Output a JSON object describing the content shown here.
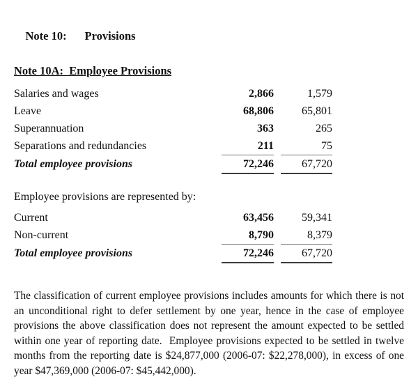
{
  "header": {
    "note_label": "Note 10:",
    "note_title": "Provisions",
    "subtitle": "Note 10A:  Employee Provisions"
  },
  "employee_provisions_table": {
    "rows": [
      {
        "label": "Salaries and wages",
        "col1": "2,866",
        "col2": "1,579"
      },
      {
        "label": "Leave",
        "col1": "68,806",
        "col2": "65,801"
      },
      {
        "label": "Superannuation",
        "col1": "363",
        "col2": "265"
      },
      {
        "label": "Separations and redundancies",
        "col1": "211",
        "col2": "75"
      }
    ],
    "total": {
      "label": "Total employee provisions",
      "col1": "72,246",
      "col2": "67,720"
    }
  },
  "represented_by": {
    "heading": "Employee provisions are represented by:",
    "rows": [
      {
        "label": "Current",
        "col1": "63,456",
        "col2": "59,341"
      },
      {
        "label": "Non-current",
        "col1": "8,790",
        "col2": "8,379"
      }
    ],
    "total": {
      "label": "Total employee provisions",
      "col1": "72,246",
      "col2": "67,720"
    }
  },
  "paragraph": "The classification of current employee provisions includes amounts for which there is not an unconditional right to defer settlement by one year, hence in the case of employee provisions the above classification does not represent the amount expected to be settled within one year of reporting date.  Employee provisions expected to be settled in twelve months from the reporting date is $24,877,000 (2006-07: $22,278,000), in excess of one year $47,369,000 (2006-07: $45,442,000)."
}
